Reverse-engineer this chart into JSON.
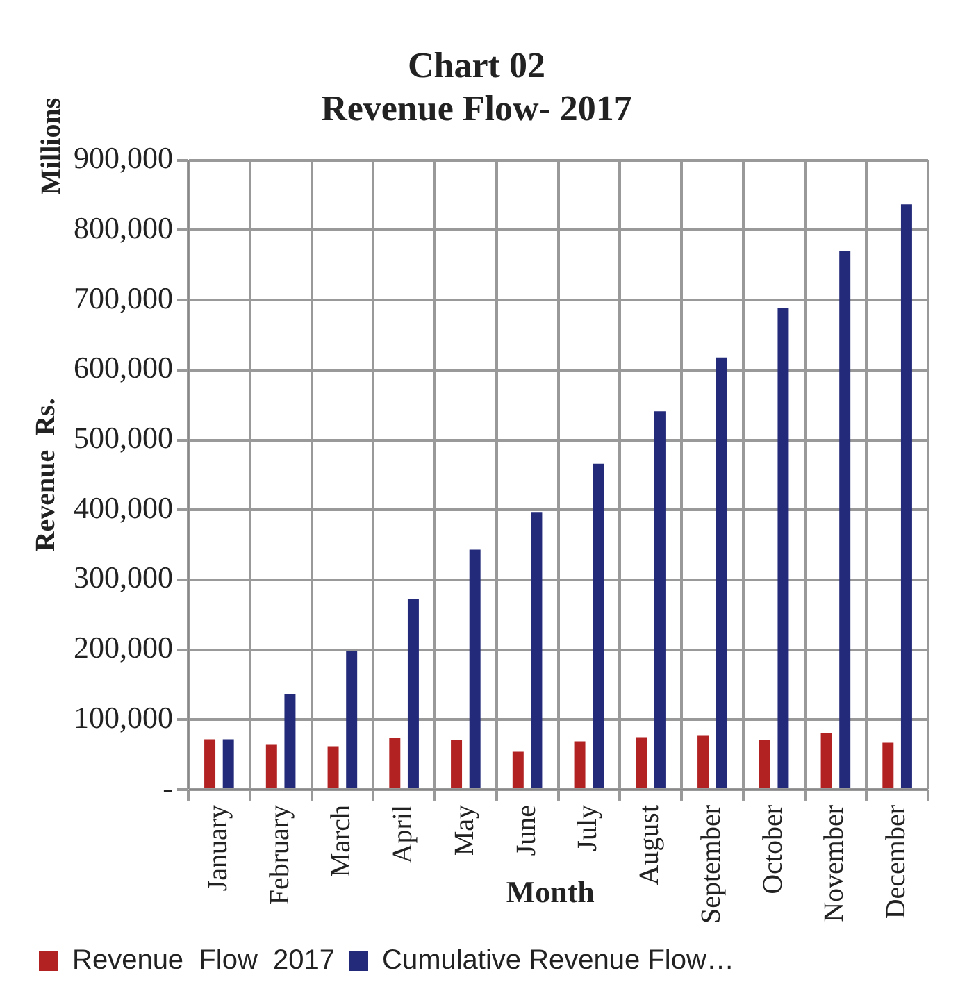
{
  "chart_data": {
    "type": "bar",
    "title": "Chart 02",
    "subtitle": "Revenue Flow- 2017",
    "xlabel": "Month",
    "ylabel": "Revenue  Rs.",
    "annotations": [
      "Millions"
    ],
    "categories": [
      "January",
      "February",
      "March",
      "April",
      "May",
      "June",
      "July",
      "August",
      "September",
      "October",
      "November",
      "December"
    ],
    "series": [
      {
        "name": "Revenue  Flow  2017",
        "color": "#b22222",
        "values": [
          72000,
          64000,
          62000,
          74000,
          71000,
          54000,
          69000,
          75000,
          77000,
          71000,
          81000,
          67000
        ]
      },
      {
        "name": "Cumulative Revenue Flow…",
        "color": "#232a7a",
        "values": [
          72000,
          136000,
          198000,
          272000,
          343000,
          397000,
          466000,
          541000,
          618000,
          689000,
          770000,
          837000
        ]
      }
    ],
    "ylim": [
      0,
      900000
    ],
    "yticks": [
      {
        "value": 0,
        "label": "-"
      },
      {
        "value": 100000,
        "label": "100,000"
      },
      {
        "value": 200000,
        "label": "200,000"
      },
      {
        "value": 300000,
        "label": "300,000"
      },
      {
        "value": 400000,
        "label": "400,000"
      },
      {
        "value": 500000,
        "label": "500,000"
      },
      {
        "value": 600000,
        "label": "600,000"
      },
      {
        "value": 700000,
        "label": "700,000"
      },
      {
        "value": 800000,
        "label": "800,000"
      },
      {
        "value": 900000,
        "label": "900,000"
      }
    ],
    "grid": true,
    "legend": "bottom left"
  }
}
